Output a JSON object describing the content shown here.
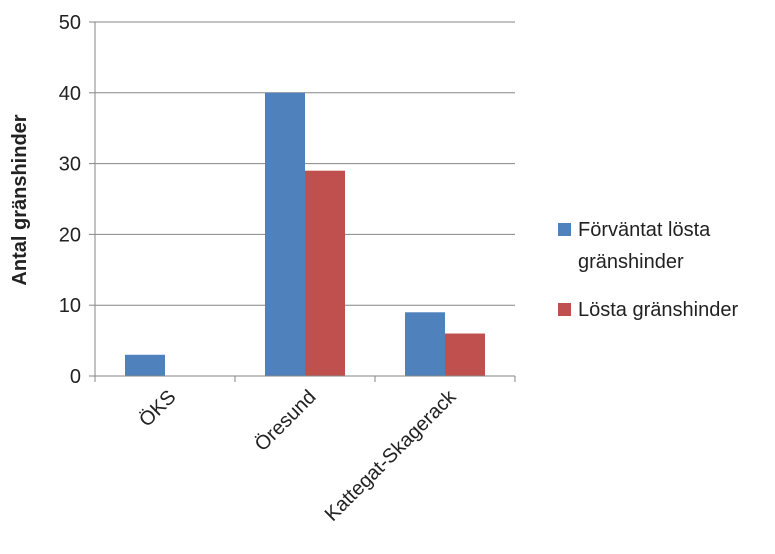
{
  "chart_data": {
    "type": "bar",
    "categories": [
      "ÖKS",
      "Öresund",
      "Kattegat-Skagerack"
    ],
    "series": [
      {
        "name": "Förväntat lösta gränshinder",
        "legend_lines": [
          "Förväntat lösta",
          "gränshinder"
        ],
        "color": "#4F81BD",
        "values": [
          3,
          40,
          9
        ]
      },
      {
        "name": "Lösta gränshinder",
        "legend_lines": [
          "Lösta gränshinder"
        ],
        "color": "#C0504D",
        "values": [
          null,
          29,
          6
        ]
      }
    ],
    "title": "",
    "xlabel": "",
    "ylabel": "Antal gränshinder",
    "ylim": [
      0,
      50
    ],
    "yticks": [
      0,
      10,
      20,
      30,
      40,
      50
    ],
    "grid": true,
    "legend_position": "right"
  }
}
